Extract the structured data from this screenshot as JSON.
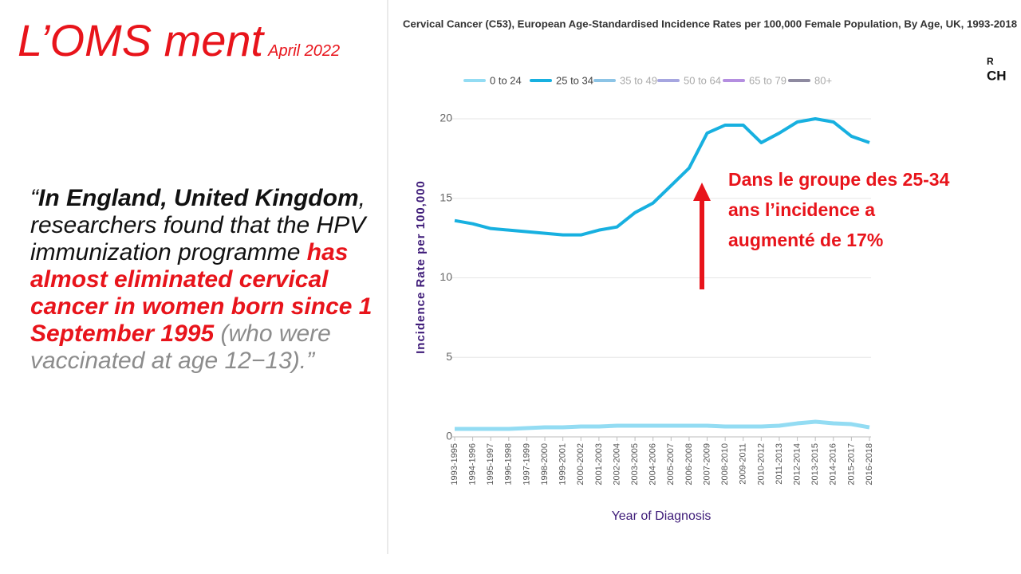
{
  "slide_title": "L’OMS ment",
  "slide_date": "April 2022",
  "quote": [
    {
      "text": "“",
      "style": "black"
    },
    {
      "text": "In England, United Kingdom",
      "style": "bold"
    },
    {
      "text": ", researchers found that the HPV immunization programme ",
      "style": "black"
    },
    {
      "text": "has almost eliminated cervical cancer in women born since 1 September 1995",
      "style": "red"
    },
    {
      "text": " (who were vaccinated at age 12−13).”",
      "style": "grey"
    }
  ],
  "logo_text": [
    "R",
    "CH"
  ],
  "chart_data": {
    "type": "line",
    "title": "Cervical Cancer (C53), European Age-Standardised Incidence Rates per 100,000 Female Population, By Age, UK, 1993-2018",
    "y_label": "Incidence Rate per 100,000",
    "x_label": "Year of Diagnosis",
    "categories": [
      "1993-1995",
      "1994-1996",
      "1995-1997",
      "1996-1998",
      "1997-1999",
      "1998-2000",
      "1999-2001",
      "2000-2002",
      "2001-2003",
      "2002-2004",
      "2003-2005",
      "2004-2006",
      "2005-2007",
      "2006-2008",
      "2007-2009",
      "2008-2010",
      "2009-2011",
      "2010-2012",
      "2011-2013",
      "2012-2014",
      "2013-2015",
      "2014-2016",
      "2015-2017",
      "2016-2018"
    ],
    "series": [
      {
        "name": "0 to 24",
        "color": "#93dcf3",
        "visible": true,
        "values": [
          0.5,
          0.5,
          0.5,
          0.5,
          0.55,
          0.6,
          0.6,
          0.65,
          0.65,
          0.7,
          0.7,
          0.7,
          0.7,
          0.7,
          0.7,
          0.65,
          0.65,
          0.65,
          0.7,
          0.85,
          0.95,
          0.85,
          0.8,
          0.6
        ]
      },
      {
        "name": "25 to 34",
        "color": "#17b0e0",
        "visible": true,
        "values": [
          13.6,
          13.4,
          13.1,
          13.0,
          12.9,
          12.8,
          12.7,
          12.7,
          13.0,
          13.2,
          14.1,
          14.7,
          15.8,
          16.9,
          19.1,
          19.6,
          19.6,
          18.5,
          19.1,
          19.8,
          20.0,
          19.8,
          18.9,
          18.5
        ]
      },
      {
        "name": "35 to 49",
        "color": "#8cc4e6",
        "visible": false
      },
      {
        "name": "50 to 64",
        "color": "#a6a6e0",
        "visible": false
      },
      {
        "name": "65 to 79",
        "color": "#b48ee0",
        "visible": false
      },
      {
        "name": "80+",
        "color": "#8e8aa0",
        "visible": false
      }
    ],
    "ylim": [
      0,
      21
    ],
    "yticks": [
      0,
      5,
      10,
      15,
      20
    ],
    "grid": true,
    "legend": "top",
    "annotation": {
      "lines": [
        "Dans le groupe des 25-34",
        "ans l’incidence a",
        "augmenté de 17%"
      ],
      "color": "#e8141b"
    }
  }
}
